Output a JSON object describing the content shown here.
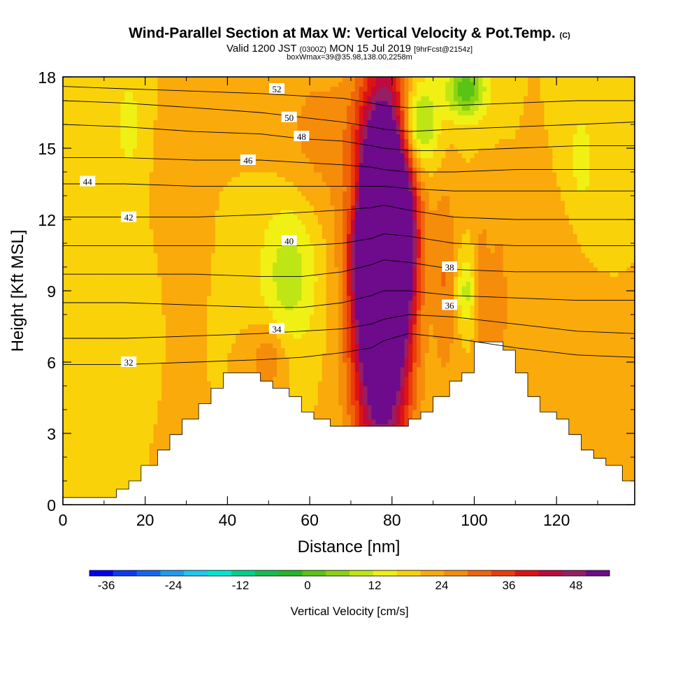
{
  "header": {
    "title": "Wind-Parallel Section at Max W: Vertical Velocity & Pot.Temp.",
    "copyright": "(C)",
    "valid_prefix": "Valid 1200 JST",
    "valid_utc": "(0300Z)",
    "valid_date": "MON 15 Jul 2019",
    "forecast": "[9hrFcst@2154z]",
    "box_info": "boxWmax=39@35.98,138.00,2258m"
  },
  "chart_data": {
    "type": "heatmap",
    "xlabel": "Distance [nm]",
    "ylabel": "Height [Kft MSL]",
    "xlim": [
      0,
      139
    ],
    "ylim": [
      0,
      18
    ],
    "x_ticks": [
      0,
      20,
      40,
      60,
      80,
      100,
      120
    ],
    "y_ticks": [
      0,
      3,
      6,
      9,
      12,
      15,
      18
    ],
    "colorbar": {
      "label": "Vertical Velocity [cm/s]",
      "min": -39,
      "max": 54,
      "step": 3,
      "ticks": [
        -36,
        -24,
        -12,
        0,
        12,
        24,
        36,
        48
      ],
      "colors": [
        "#0000f0",
        "#0a3cf0",
        "#1466f0",
        "#1e9cf0",
        "#1ec8f0",
        "#00e6d2",
        "#00d28c",
        "#14be50",
        "#28b428",
        "#5ac314",
        "#8cd214",
        "#bee614",
        "#f0f014",
        "#fad20a",
        "#faaa0a",
        "#f58c0a",
        "#f0640a",
        "#eb3c0a",
        "#dc1414",
        "#be0a3c",
        "#961e64",
        "#6e0a8c"
      ]
    },
    "terrain": [
      [
        0,
        0.3
      ],
      [
        13,
        0.3
      ],
      [
        13,
        0.65
      ],
      [
        16,
        0.65
      ],
      [
        16,
        1.0
      ],
      [
        19,
        1.0
      ],
      [
        19,
        1.65
      ],
      [
        23,
        1.65
      ],
      [
        23,
        2.3
      ],
      [
        26,
        2.3
      ],
      [
        26,
        2.95
      ],
      [
        29,
        2.95
      ],
      [
        29,
        3.6
      ],
      [
        33,
        3.6
      ],
      [
        33,
        4.25
      ],
      [
        36,
        4.25
      ],
      [
        36,
        4.9
      ],
      [
        39,
        4.9
      ],
      [
        39,
        5.55
      ],
      [
        48,
        5.55
      ],
      [
        48,
        5.2
      ],
      [
        51,
        5.2
      ],
      [
        51,
        4.9
      ],
      [
        55,
        4.9
      ],
      [
        55,
        4.55
      ],
      [
        58,
        4.55
      ],
      [
        58,
        3.9
      ],
      [
        61,
        3.9
      ],
      [
        61,
        3.6
      ],
      [
        65,
        3.6
      ],
      [
        65,
        3.3
      ],
      [
        84,
        3.3
      ],
      [
        84,
        3.6
      ],
      [
        87,
        3.6
      ],
      [
        87,
        3.9
      ],
      [
        90,
        3.9
      ],
      [
        90,
        4.55
      ],
      [
        94,
        4.55
      ],
      [
        94,
        5.2
      ],
      [
        97,
        5.2
      ],
      [
        97,
        5.55
      ],
      [
        100,
        5.55
      ],
      [
        100,
        6.85
      ],
      [
        107,
        6.85
      ],
      [
        107,
        6.5
      ],
      [
        110,
        6.5
      ],
      [
        110,
        5.55
      ],
      [
        113,
        5.55
      ],
      [
        113,
        4.55
      ],
      [
        116,
        4.55
      ],
      [
        116,
        3.9
      ],
      [
        120,
        3.9
      ],
      [
        120,
        3.6
      ],
      [
        123,
        3.6
      ],
      [
        123,
        2.95
      ],
      [
        126,
        2.95
      ],
      [
        126,
        2.3
      ],
      [
        129,
        2.3
      ],
      [
        129,
        1.95
      ],
      [
        132,
        1.95
      ],
      [
        132,
        1.65
      ],
      [
        136,
        1.65
      ],
      [
        136,
        1.0
      ],
      [
        139,
        1.0
      ],
      [
        139,
        0
      ]
    ],
    "w_features": [
      {
        "x": 78,
        "y": 11.0,
        "sx": 3.5,
        "sy": 1.8,
        "a": 50
      },
      {
        "x": 78,
        "y": 10.0,
        "sx": 4.5,
        "sy": 4.5,
        "a": 28
      },
      {
        "x": 77,
        "y": 8.0,
        "sx": 5.0,
        "sy": 5.0,
        "a": 18
      },
      {
        "x": 79,
        "y": 14.0,
        "sx": 4.5,
        "sy": 3.5,
        "a": 15
      },
      {
        "x": 86,
        "y": 16.0,
        "sx": 3.5,
        "sy": 1.4,
        "a": -14
      },
      {
        "x": 98,
        "y": 17.5,
        "sx": 3.5,
        "sy": 0.9,
        "a": -14
      },
      {
        "x": 55,
        "y": 9.8,
        "sx": 5.0,
        "sy": 2.2,
        "a": -8
      },
      {
        "x": 98,
        "y": 9.0,
        "sx": 2.0,
        "sy": 1.0,
        "a": -7
      },
      {
        "x": 71,
        "y": 13.0,
        "sx": 1.6,
        "sy": 1.0,
        "a": -7
      },
      {
        "x": 14,
        "y": 8.8,
        "sx": 7.0,
        "sy": 1.8,
        "a": -3
      },
      {
        "x": 16,
        "y": 16.0,
        "sx": 3.0,
        "sy": 1.8,
        "a": -4
      },
      {
        "x": 126,
        "y": 14.5,
        "sx": 3.0,
        "sy": 2.0,
        "a": -4
      },
      {
        "x": 62,
        "y": 15.5,
        "sx": 7.0,
        "sy": 2.5,
        "a": 4
      },
      {
        "x": 93,
        "y": 9.5,
        "sx": 2.0,
        "sy": 3.0,
        "a": 6
      },
      {
        "x": 102,
        "y": 9.0,
        "sx": 1.4,
        "sy": 2.2,
        "a": 6
      },
      {
        "x": 106,
        "y": 8.5,
        "sx": 1.4,
        "sy": 2.2,
        "a": 6
      },
      {
        "x": 27,
        "y": 12.0,
        "sx": 3.0,
        "sy": 3.0,
        "a": 3
      },
      {
        "x": 50,
        "y": 6.2,
        "sx": 3.0,
        "sy": 1.0,
        "a": 6
      },
      {
        "x": 120,
        "y": 9.0,
        "sx": 4.0,
        "sy": 2.5,
        "a": 3
      }
    ],
    "isentropes": [
      {
        "label": "32",
        "x": [
          0,
          15,
          32,
          48,
          58,
          68,
          75,
          78,
          84,
          95,
          110,
          125,
          139
        ],
        "y": [
          5.9,
          5.9,
          6.0,
          6.1,
          6.2,
          6.4,
          6.6,
          6.9,
          7.2,
          7.0,
          6.6,
          6.3,
          6.2
        ],
        "label_pos": [
          16,
          6.0
        ]
      },
      {
        "label": "34",
        "x": [
          0,
          15,
          32,
          48,
          58,
          68,
          75,
          78,
          84,
          95,
          110,
          125,
          139
        ],
        "y": [
          7.0,
          7.0,
          7.1,
          7.2,
          7.3,
          7.4,
          7.6,
          7.8,
          8.0,
          7.9,
          7.6,
          7.3,
          7.2
        ],
        "label_pos": [
          52,
          7.4
        ]
      },
      {
        "label": "36",
        "x": [
          0,
          15,
          32,
          48,
          58,
          68,
          75,
          78,
          84,
          95,
          110,
          125,
          139
        ],
        "y": [
          8.5,
          8.5,
          8.4,
          8.3,
          8.3,
          8.5,
          8.8,
          9.0,
          9.0,
          8.8,
          8.7,
          8.6,
          8.6
        ],
        "label_pos": [
          94,
          8.4
        ]
      },
      {
        "label": "38",
        "x": [
          0,
          15,
          32,
          48,
          58,
          68,
          75,
          78,
          84,
          95,
          110,
          125,
          139
        ],
        "y": [
          9.7,
          9.7,
          9.7,
          9.6,
          9.6,
          9.8,
          10.1,
          10.3,
          10.2,
          9.9,
          9.8,
          9.8,
          9.8
        ],
        "label_pos": [
          94,
          10.0
        ]
      },
      {
        "label": "40",
        "x": [
          0,
          15,
          32,
          48,
          58,
          68,
          75,
          78,
          84,
          95,
          110,
          125,
          139
        ],
        "y": [
          10.9,
          10.9,
          10.9,
          10.9,
          10.9,
          11.0,
          11.2,
          11.4,
          11.3,
          11.0,
          10.9,
          10.9,
          10.9
        ],
        "label_pos": [
          55,
          11.1
        ]
      },
      {
        "label": "42",
        "x": [
          0,
          15,
          32,
          48,
          58,
          68,
          75,
          78,
          84,
          95,
          110,
          125,
          139
        ],
        "y": [
          12.1,
          12.1,
          12.1,
          12.2,
          12.3,
          12.4,
          12.5,
          12.6,
          12.4,
          12.1,
          12.0,
          12.0,
          12.0
        ],
        "label_pos": [
          16,
          12.1
        ]
      },
      {
        "label": "44",
        "x": [
          0,
          15,
          32,
          48,
          58,
          68,
          75,
          78,
          84,
          95,
          110,
          125,
          139
        ],
        "y": [
          13.5,
          13.5,
          13.4,
          13.4,
          13.4,
          13.4,
          13.4,
          13.4,
          13.3,
          13.2,
          13.2,
          13.2,
          13.2
        ],
        "label_pos": [
          6,
          13.6
        ]
      },
      {
        "label": "46",
        "x": [
          0,
          15,
          32,
          48,
          58,
          68,
          75,
          78,
          84,
          95,
          110,
          125,
          139
        ],
        "y": [
          14.6,
          14.6,
          14.5,
          14.5,
          14.4,
          14.3,
          14.2,
          14.1,
          14.0,
          14.0,
          14.1,
          14.1,
          14.1
        ],
        "label_pos": [
          45,
          14.5
        ]
      },
      {
        "label": "48",
        "x": [
          0,
          15,
          32,
          48,
          58,
          68,
          75,
          78,
          84,
          95,
          110,
          125,
          139
        ],
        "y": [
          16.0,
          15.9,
          15.7,
          15.6,
          15.4,
          15.3,
          15.1,
          15.0,
          14.9,
          14.9,
          15.0,
          15.1,
          15.1
        ],
        "label_pos": [
          58,
          15.5
        ]
      },
      {
        "label": "50",
        "x": [
          0,
          15,
          32,
          48,
          58,
          68,
          75,
          78,
          84,
          95,
          110,
          125,
          139
        ],
        "y": [
          17.0,
          16.9,
          16.7,
          16.5,
          16.3,
          16.1,
          15.9,
          15.8,
          15.7,
          15.8,
          15.9,
          16.0,
          16.1
        ],
        "label_pos": [
          55,
          16.3
        ]
      },
      {
        "label": "52",
        "x": [
          0,
          15,
          32,
          48,
          58,
          68,
          75,
          78,
          84,
          95,
          110,
          125,
          139
        ],
        "y": [
          17.6,
          17.5,
          17.4,
          17.3,
          17.2,
          17.1,
          16.9,
          16.8,
          16.7,
          16.8,
          16.9,
          17.0,
          17.0
        ],
        "label_pos": [
          52,
          17.5
        ]
      }
    ]
  }
}
